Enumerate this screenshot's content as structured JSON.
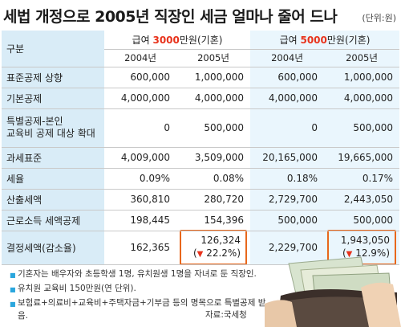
{
  "title": "세법 개정으로 2005년 직장인 세금 얼마나 줄어 드나",
  "unit": "(단위:원)",
  "header": {
    "category_label": "구분",
    "group1": {
      "prefix": "급여 ",
      "amount": "3000",
      "suffix": "만원(기혼)"
    },
    "group2": {
      "prefix": "급여 ",
      "amount": "5000",
      "suffix": "만원(기혼)"
    },
    "years": [
      "2004년",
      "2005년",
      "2004년",
      "2005년"
    ]
  },
  "rows": [
    {
      "label": "표준공제 상향",
      "values": [
        "600,000",
        "1,000,000",
        "600,000",
        "1,000,000"
      ]
    },
    {
      "label": "기본공제",
      "values": [
        "4,000,000",
        "4,000,000",
        "4,000,000",
        "4,000,000"
      ]
    },
    {
      "label_line1": "특별공제-본인",
      "label_line2": "교육비 공제 대상 확대",
      "values": [
        "0",
        "500,000",
        "0",
        "500,000"
      ]
    },
    {
      "label": "과세표준",
      "values": [
        "4,009,000",
        "3,509,000",
        "20,165,000",
        "19,665,000"
      ]
    },
    {
      "label": "세율",
      "values": [
        "0.09%",
        "0.08%",
        "0.18%",
        "0.17%"
      ]
    },
    {
      "label": "산출세액",
      "values": [
        "360,810",
        "280,720",
        "2,729,700",
        "2,443,050"
      ]
    },
    {
      "label": "근로소득 세액공제",
      "values": [
        "198,445",
        "154,396",
        "500,000",
        "500,000"
      ]
    }
  ],
  "final_row": {
    "label": "결정세액(감소율)",
    "values": [
      "162,365",
      "126,324",
      "2,229,700",
      "1,943,050"
    ],
    "rates": [
      "22.2%",
      "12.9%"
    ],
    "triangle": "▼"
  },
  "notes": [
    "기혼자는 배우자와 초등학생 1명, 유치원생 1명을 자녀로 둔 직장인.",
    "유치원 교육비 150만원(연 단위).",
    "보험료+의료비+교육비+주택자금+기부금 등의 명목으로 특별공제 받음."
  ],
  "source": "자료:국세청",
  "colors": {
    "accent_red": "#e8321b",
    "label_bg": "#d9ecf7",
    "alt_bg": "#eaf6fd",
    "highlight_border": "#e8671b",
    "bullet": "#2aa6dd"
  }
}
